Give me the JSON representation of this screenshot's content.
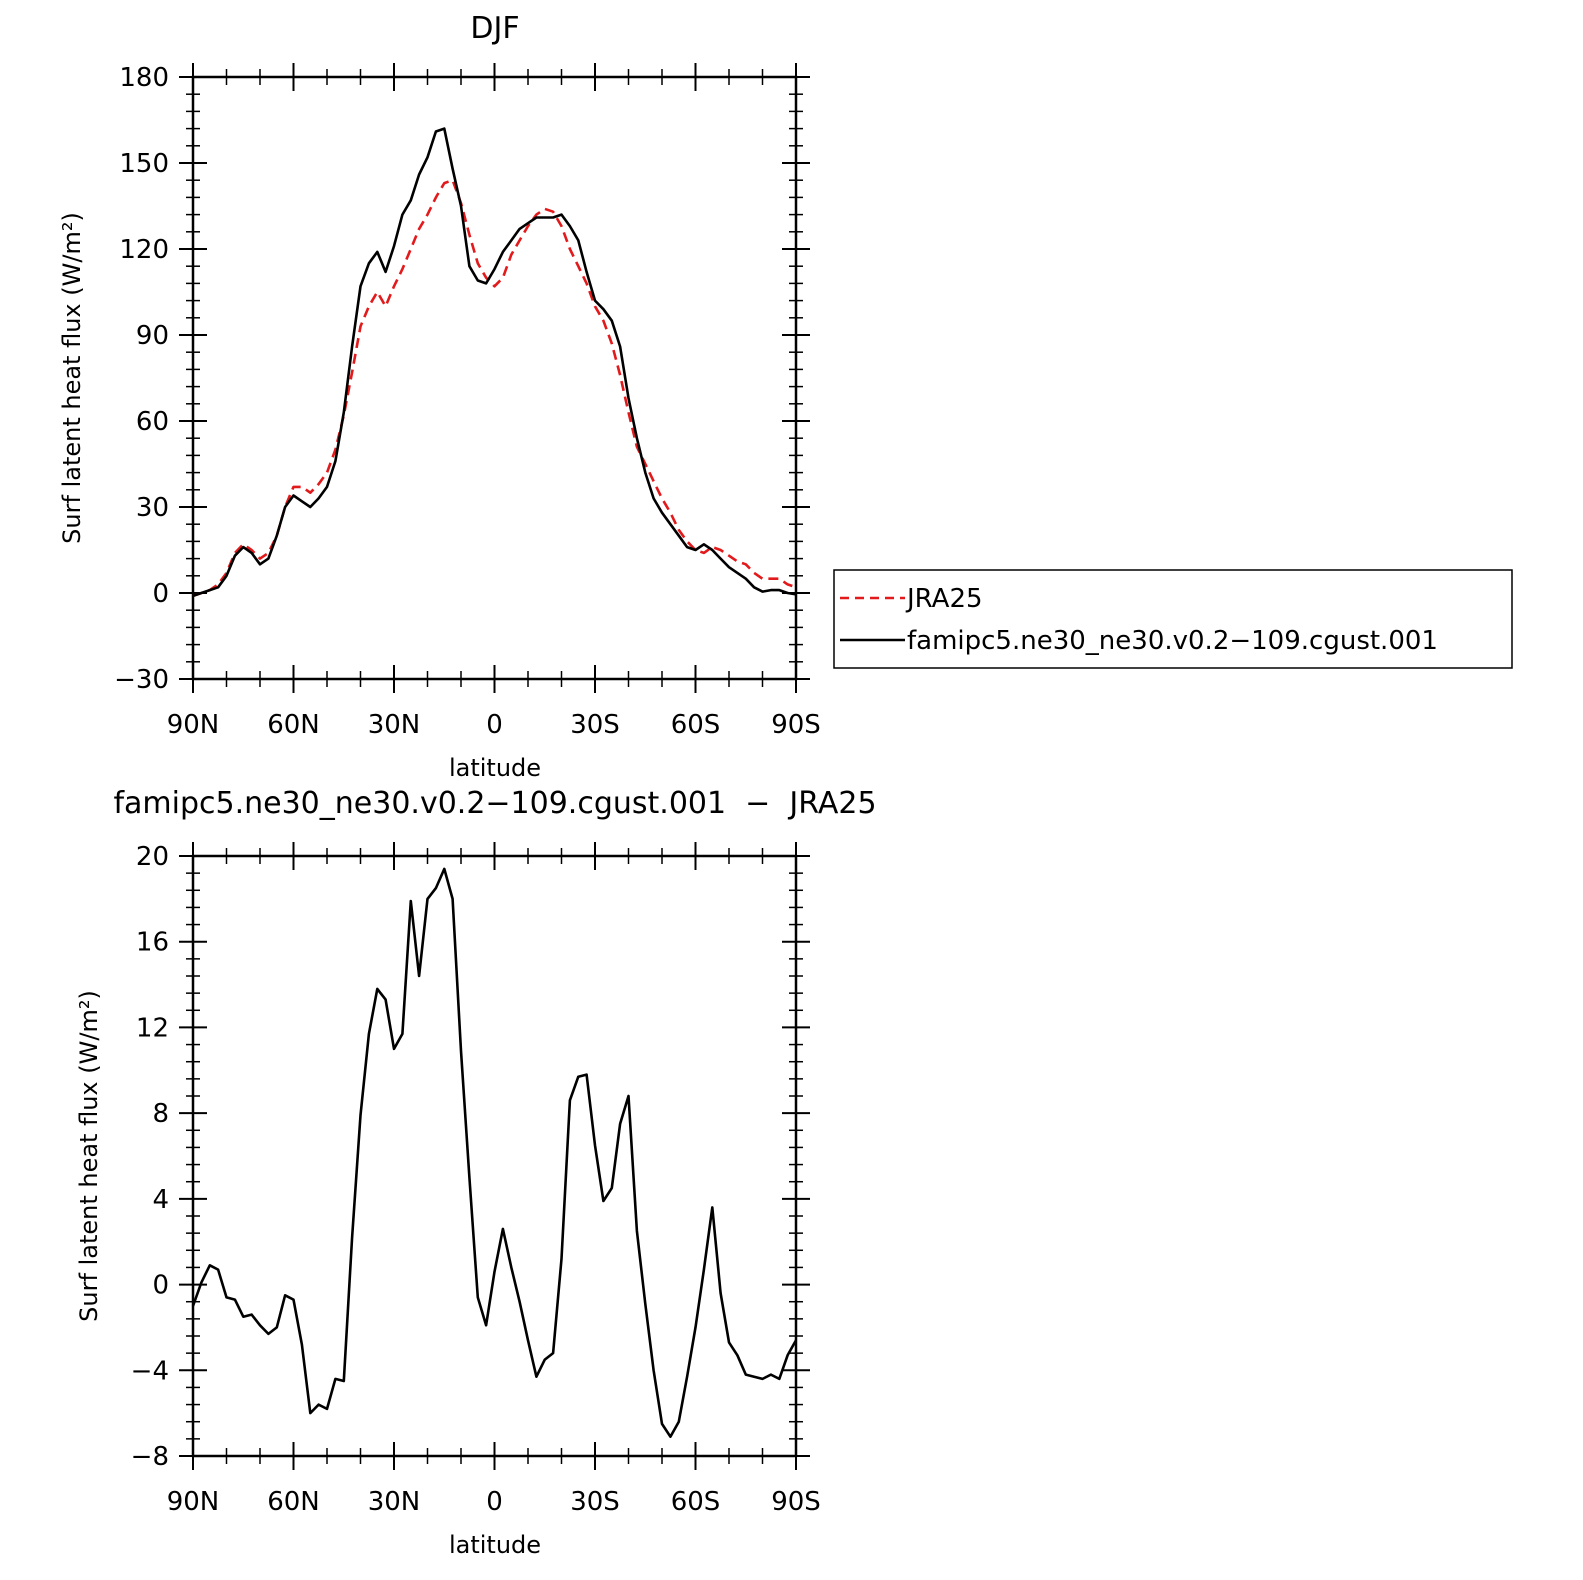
{
  "chart_data": [
    {
      "type": "line",
      "title": "DJF",
      "xlabel": "latitude",
      "ylabel": "Surf latent heat flux (W/m²)",
      "xlim": [
        90,
        -90
      ],
      "x_ticks": [
        90,
        60,
        30,
        0,
        -30,
        -60,
        -90
      ],
      "x_tick_labels": [
        "90N",
        "60N",
        "30N",
        "0",
        "30S",
        "60S",
        "90S"
      ],
      "ylim": [
        -30,
        180
      ],
      "y_ticks": [
        -30,
        0,
        30,
        60,
        90,
        120,
        150,
        180
      ],
      "y_tick_labels": [
        "−30",
        "0",
        "30",
        "60",
        "90",
        "120",
        "150",
        "180"
      ],
      "legend": {
        "position": "right"
      },
      "series": [
        {
          "name": "JRA25",
          "color": "#e31a1c",
          "dash": "dashed",
          "x": [
            90,
            87.5,
            85,
            82.5,
            80,
            77.5,
            75,
            72.5,
            70,
            67.5,
            65,
            62.5,
            60,
            57.5,
            55,
            52.5,
            50,
            47.5,
            45,
            42.5,
            40,
            37.5,
            35,
            32.5,
            30,
            27.5,
            25,
            22.5,
            20,
            17.5,
            15,
            12.5,
            10,
            7.5,
            5,
            2.5,
            0,
            -2.5,
            -5,
            -7.5,
            -10,
            -12.5,
            -15,
            -17.5,
            -20,
            -22.5,
            -25,
            -27.5,
            -30,
            -32.5,
            -35,
            -37.5,
            -40,
            -42.5,
            -45,
            -47.5,
            -50,
            -52.5,
            -55,
            -57.5,
            -60,
            -62.5,
            -65,
            -67.5,
            -70,
            -72.5,
            -75,
            -77.5,
            -80,
            -82.5,
            -85,
            -87.5,
            -90
          ],
          "values": [
            -1,
            0,
            1,
            3,
            7,
            14,
            17,
            15,
            12,
            14,
            20,
            30,
            37,
            37,
            35,
            38,
            42,
            50,
            62,
            77,
            93,
            100,
            105,
            100,
            107,
            113,
            120,
            127,
            132,
            138,
            143,
            144,
            136,
            125,
            115,
            110,
            107,
            110,
            118,
            123,
            128,
            132,
            134,
            133,
            128,
            120,
            114,
            108,
            100,
            95,
            87,
            76,
            63,
            51,
            45,
            39,
            33,
            28,
            22,
            18,
            15,
            14,
            16,
            15,
            13,
            11,
            10,
            7,
            5,
            5,
            5,
            3,
            2
          ]
        },
        {
          "name": "famipc5.ne30_ne30.v0.2−109.cgust.001",
          "color": "#000000",
          "dash": "solid",
          "x": [
            90,
            87.5,
            85,
            82.5,
            80,
            77.5,
            75,
            72.5,
            70,
            67.5,
            65,
            62.5,
            60,
            57.5,
            55,
            52.5,
            50,
            47.5,
            45,
            42.5,
            40,
            37.5,
            35,
            32.5,
            30,
            27.5,
            25,
            22.5,
            20,
            17.5,
            15,
            12.5,
            10,
            7.5,
            5,
            2.5,
            0,
            -2.5,
            -5,
            -7.5,
            -10,
            -12.5,
            -15,
            -17.5,
            -20,
            -22.5,
            -25,
            -27.5,
            -30,
            -32.5,
            -35,
            -37.5,
            -40,
            -42.5,
            -45,
            -47.5,
            -50,
            -52.5,
            -55,
            -57.5,
            -60,
            -62.5,
            -65,
            -67.5,
            -70,
            -72.5,
            -75,
            -77.5,
            -80,
            -82.5,
            -85,
            -87.5,
            -90
          ],
          "values": [
            -1,
            0,
            1,
            2,
            6,
            13,
            16,
            14,
            10,
            12,
            20,
            30,
            34,
            32,
            30,
            33,
            37,
            46,
            63,
            86,
            107,
            115,
            119,
            112,
            121,
            132,
            137,
            146,
            152,
            161,
            162,
            148,
            135,
            114,
            109,
            108,
            113,
            119,
            123,
            127,
            129,
            131,
            131,
            131,
            132,
            128,
            123,
            112,
            102,
            99,
            95,
            86,
            68,
            54,
            42,
            33,
            28,
            24,
            20,
            16,
            15,
            17,
            15,
            12,
            9,
            7,
            5,
            2,
            0.5,
            1,
            1,
            0,
            -0.5
          ]
        }
      ]
    },
    {
      "type": "line",
      "title": "famipc5.ne30_ne30.v0.2−109.cgust.001  −  JRA25",
      "xlabel": "latitude",
      "ylabel": "Surf latent heat flux (W/m²)",
      "xlim": [
        90,
        -90
      ],
      "x_ticks": [
        90,
        60,
        30,
        0,
        -30,
        -60,
        -90
      ],
      "x_tick_labels": [
        "90N",
        "60N",
        "30N",
        "0",
        "30S",
        "60S",
        "90S"
      ],
      "ylim": [
        -8,
        20
      ],
      "y_ticks": [
        -8,
        -4,
        0,
        4,
        8,
        12,
        16,
        20
      ],
      "y_tick_labels": [
        "−8",
        "−4",
        "0",
        "4",
        "8",
        "12",
        "16",
        "20"
      ],
      "series": [
        {
          "color": "#000000",
          "dash": "solid",
          "x": [
            90,
            87.5,
            85,
            82.5,
            80,
            77.5,
            75,
            72.5,
            70,
            67.5,
            65,
            62.5,
            60,
            57.5,
            55,
            52.5,
            50,
            47.5,
            45,
            42.5,
            40,
            37.5,
            35,
            32.5,
            30,
            27.5,
            25,
            22.5,
            20,
            17.5,
            15,
            12.5,
            10,
            7.5,
            5,
            2.5,
            0,
            -2.5,
            -5,
            -7.5,
            -10,
            -12.5,
            -15,
            -17.5,
            -20,
            -22.5,
            -25,
            -27.5,
            -30,
            -32.5,
            -35,
            -37.5,
            -40,
            -42.5,
            -45,
            -47.5,
            -50,
            -52.5,
            -55,
            -57.5,
            -60,
            -62.5,
            -65,
            -67.5,
            -70,
            -72.5,
            -75,
            -77.5,
            -80,
            -82.5,
            -85,
            -87.5,
            -90
          ],
          "values": [
            -1,
            0.1,
            0.9,
            0.7,
            -0.6,
            -0.7,
            -1.5,
            -1.4,
            -1.9,
            -2.3,
            -2.0,
            -0.5,
            -0.7,
            -2.8,
            -6.0,
            -5.6,
            -5.8,
            -4.4,
            -4.5,
            2.2,
            7.9,
            11.7,
            13.8,
            13.3,
            11.0,
            11.7,
            17.9,
            14.4,
            18.0,
            18.5,
            19.4,
            18.0,
            10.9,
            5.0,
            -0.6,
            -1.9,
            0.6,
            2.6,
            0.8,
            -0.8,
            -2.6,
            -4.3,
            -3.5,
            -3.2,
            1.2,
            8.6,
            9.7,
            9.8,
            6.5,
            3.9,
            4.5,
            7.5,
            8.8,
            2.5,
            -0.9,
            -4.0,
            -6.5,
            -7.1,
            -6.4,
            -4.3,
            -2.0,
            0.7,
            3.6,
            -0.4,
            -2.7,
            -3.3,
            -4.2,
            -4.3,
            -4.4,
            -4.2,
            -4.4,
            -3.3,
            -2.6
          ]
        }
      ]
    }
  ]
}
